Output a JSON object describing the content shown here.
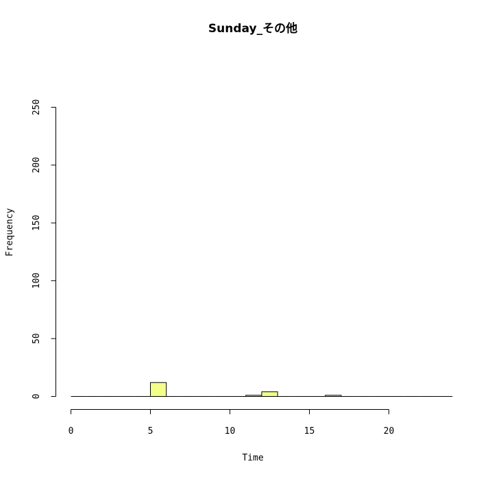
{
  "chart_data": {
    "type": "bar",
    "title": "Sunday_その他",
    "xlabel": "Time",
    "ylabel": "Frequency",
    "xlim": [
      0,
      24
    ],
    "ylim": [
      0,
      250
    ],
    "x_ticks": [
      0,
      5,
      10,
      15,
      20
    ],
    "y_ticks": [
      0,
      50,
      100,
      150,
      200,
      250
    ],
    "bin_width": 1,
    "bins": [
      {
        "start": 0,
        "count": 0
      },
      {
        "start": 1,
        "count": 0
      },
      {
        "start": 2,
        "count": 0
      },
      {
        "start": 3,
        "count": 0
      },
      {
        "start": 4,
        "count": 0
      },
      {
        "start": 5,
        "count": 12
      },
      {
        "start": 6,
        "count": 0
      },
      {
        "start": 7,
        "count": 0
      },
      {
        "start": 8,
        "count": 0
      },
      {
        "start": 9,
        "count": 0
      },
      {
        "start": 10,
        "count": 0
      },
      {
        "start": 11,
        "count": 1
      },
      {
        "start": 12,
        "count": 4
      },
      {
        "start": 13,
        "count": 0
      },
      {
        "start": 14,
        "count": 0
      },
      {
        "start": 15,
        "count": 0
      },
      {
        "start": 16,
        "count": 1
      },
      {
        "start": 17,
        "count": 0
      },
      {
        "start": 18,
        "count": 0
      },
      {
        "start": 19,
        "count": 0
      },
      {
        "start": 20,
        "count": 0
      },
      {
        "start": 21,
        "count": 0
      },
      {
        "start": 22,
        "count": 0
      },
      {
        "start": 23,
        "count": 0
      }
    ],
    "bar_color": "#f4ff8a",
    "grid": false
  }
}
